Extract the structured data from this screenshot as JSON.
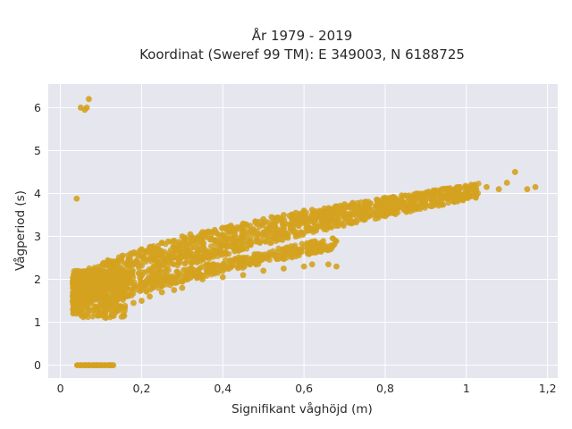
{
  "chart_data": {
    "type": "scatter",
    "title_line1": "År 1979 - 2019",
    "title_line2": "Koordinat (Sweref 99 TM): E 349003, N 6188725",
    "xlabel": "Signifikant våghöjd (m)",
    "ylabel": "Vågperiod (s)",
    "xlim": [
      -0.03,
      1.225
    ],
    "ylim": [
      -0.3,
      6.55
    ],
    "xticks": [
      0,
      0.2,
      0.4,
      0.6,
      0.8,
      1,
      1.2
    ],
    "xtick_labels": [
      "0",
      "0,2",
      "0,4",
      "0,6",
      "0,8",
      "1",
      "1,2"
    ],
    "yticks": [
      0,
      1,
      2,
      3,
      4,
      5,
      6
    ],
    "ytick_labels": [
      "0",
      "1",
      "2",
      "3",
      "4",
      "5",
      "6"
    ],
    "grid": true,
    "series": [
      {
        "color": "#d4a21f",
        "x": [
          0.03,
          0.04,
          0.05,
          0.06,
          0.07,
          0.08,
          0.1,
          0.12,
          0.15,
          0.18,
          0.2,
          0.22,
          0.25,
          0.28,
          0.3,
          0.32,
          0.35,
          0.38,
          0.4,
          0.42,
          0.45,
          0.48,
          0.5,
          0.52,
          0.55,
          0.58,
          0.6,
          0.62,
          0.65,
          0.68,
          0.7,
          0.72,
          0.75,
          0.78,
          0.8,
          0.82,
          0.85,
          0.88,
          0.9,
          0.92,
          0.95,
          0.98,
          1.0,
          1.02,
          1.05,
          1.08,
          1.1,
          1.12,
          1.15,
          1.17,
          0.15,
          0.2,
          0.25,
          0.3,
          0.35,
          0.4,
          0.45,
          0.5,
          0.55,
          0.6,
          0.62,
          0.66,
          0.68,
          0.1,
          0.12,
          0.15,
          0.18,
          0.2,
          0.22,
          0.25,
          0.28,
          0.3,
          0.05,
          0.06,
          0.07,
          0.08,
          0.09,
          0.1,
          0.11,
          0.12,
          0.13,
          0.05,
          0.06,
          0.065,
          0.07,
          0.04
        ],
        "y": [
          1.5,
          1.6,
          1.8,
          1.9,
          2.0,
          2.1,
          2.2,
          2.3,
          2.5,
          2.6,
          2.7,
          2.75,
          2.85,
          2.9,
          3.0,
          3.05,
          3.1,
          3.15,
          3.2,
          3.25,
          3.3,
          3.35,
          3.4,
          3.45,
          3.5,
          3.55,
          3.6,
          3.62,
          3.65,
          3.7,
          3.75,
          3.78,
          3.8,
          3.85,
          3.9,
          3.92,
          3.95,
          4.0,
          4.0,
          4.05,
          4.1,
          4.1,
          4.15,
          4.2,
          4.15,
          4.1,
          4.25,
          4.5,
          4.1,
          4.15,
          1.6,
          1.75,
          1.85,
          1.95,
          2.0,
          2.05,
          2.1,
          2.2,
          2.25,
          2.3,
          2.35,
          2.35,
          2.3,
          1.2,
          1.3,
          1.35,
          1.45,
          1.5,
          1.6,
          1.7,
          1.75,
          1.8,
          0,
          0,
          0,
          0,
          0,
          0,
          0,
          0,
          0,
          6.0,
          5.95,
          6.0,
          6.2,
          3.88
        ]
      }
    ]
  }
}
